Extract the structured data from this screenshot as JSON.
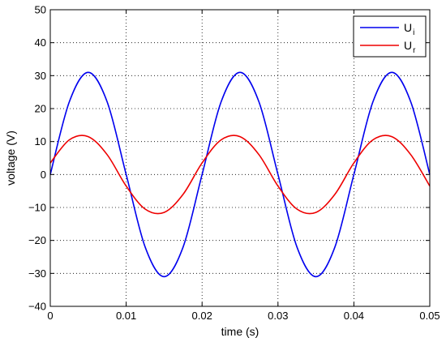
{
  "chart_data": {
    "type": "line",
    "title": "",
    "xlabel": "time (s)",
    "ylabel": "voltage (V)",
    "xlim": [
      0,
      0.05
    ],
    "ylim": [
      -40,
      50
    ],
    "xticks": [
      0,
      0.01,
      0.02,
      0.03,
      0.04,
      0.05
    ],
    "xtick_labels": [
      "0",
      "0.01",
      "0.02",
      "0.03",
      "0.04",
      "0.05"
    ],
    "yticks": [
      -40,
      -30,
      -20,
      -10,
      0,
      10,
      20,
      30,
      40,
      50
    ],
    "ytick_labels": [
      "−40",
      "−30",
      "−20",
      "−10",
      "0",
      "10",
      "20",
      "30",
      "40",
      "50"
    ],
    "grid": true,
    "legend_position": "top-right",
    "series": [
      {
        "name": "U",
        "subscript": "i",
        "color": "#0000ee",
        "x": [
          0,
          0.0025,
          0.005,
          0.0075,
          0.01,
          0.0125,
          0.015,
          0.0175,
          0.02,
          0.0225,
          0.025,
          0.0275,
          0.03,
          0.0325,
          0.035,
          0.0375,
          0.04,
          0.0425,
          0.045,
          0.0475,
          0.05
        ],
        "y": [
          0,
          22,
          31,
          22,
          0,
          -22,
          -31,
          -22,
          0,
          22,
          31,
          22,
          0,
          -22,
          -31,
          -22,
          0,
          22,
          31,
          22,
          0
        ]
      },
      {
        "name": "U",
        "subscript": "r",
        "color": "#ee0000",
        "x": [
          0,
          0.0025,
          0.005,
          0.0075,
          0.01,
          0.0125,
          0.015,
          0.0175,
          0.02,
          0.0225,
          0.025,
          0.0275,
          0.03,
          0.0325,
          0.035,
          0.0375,
          0.04,
          0.0425,
          0.045,
          0.0475,
          0.05
        ],
        "y": [
          3.5,
          10.5,
          11.5,
          6,
          -3.5,
          -10.5,
          -11.5,
          -6,
          3.5,
          10.5,
          11.5,
          6,
          -3.5,
          -10.5,
          -11.5,
          -6,
          3.5,
          10.5,
          11.5,
          6,
          -3.5
        ]
      }
    ]
  }
}
